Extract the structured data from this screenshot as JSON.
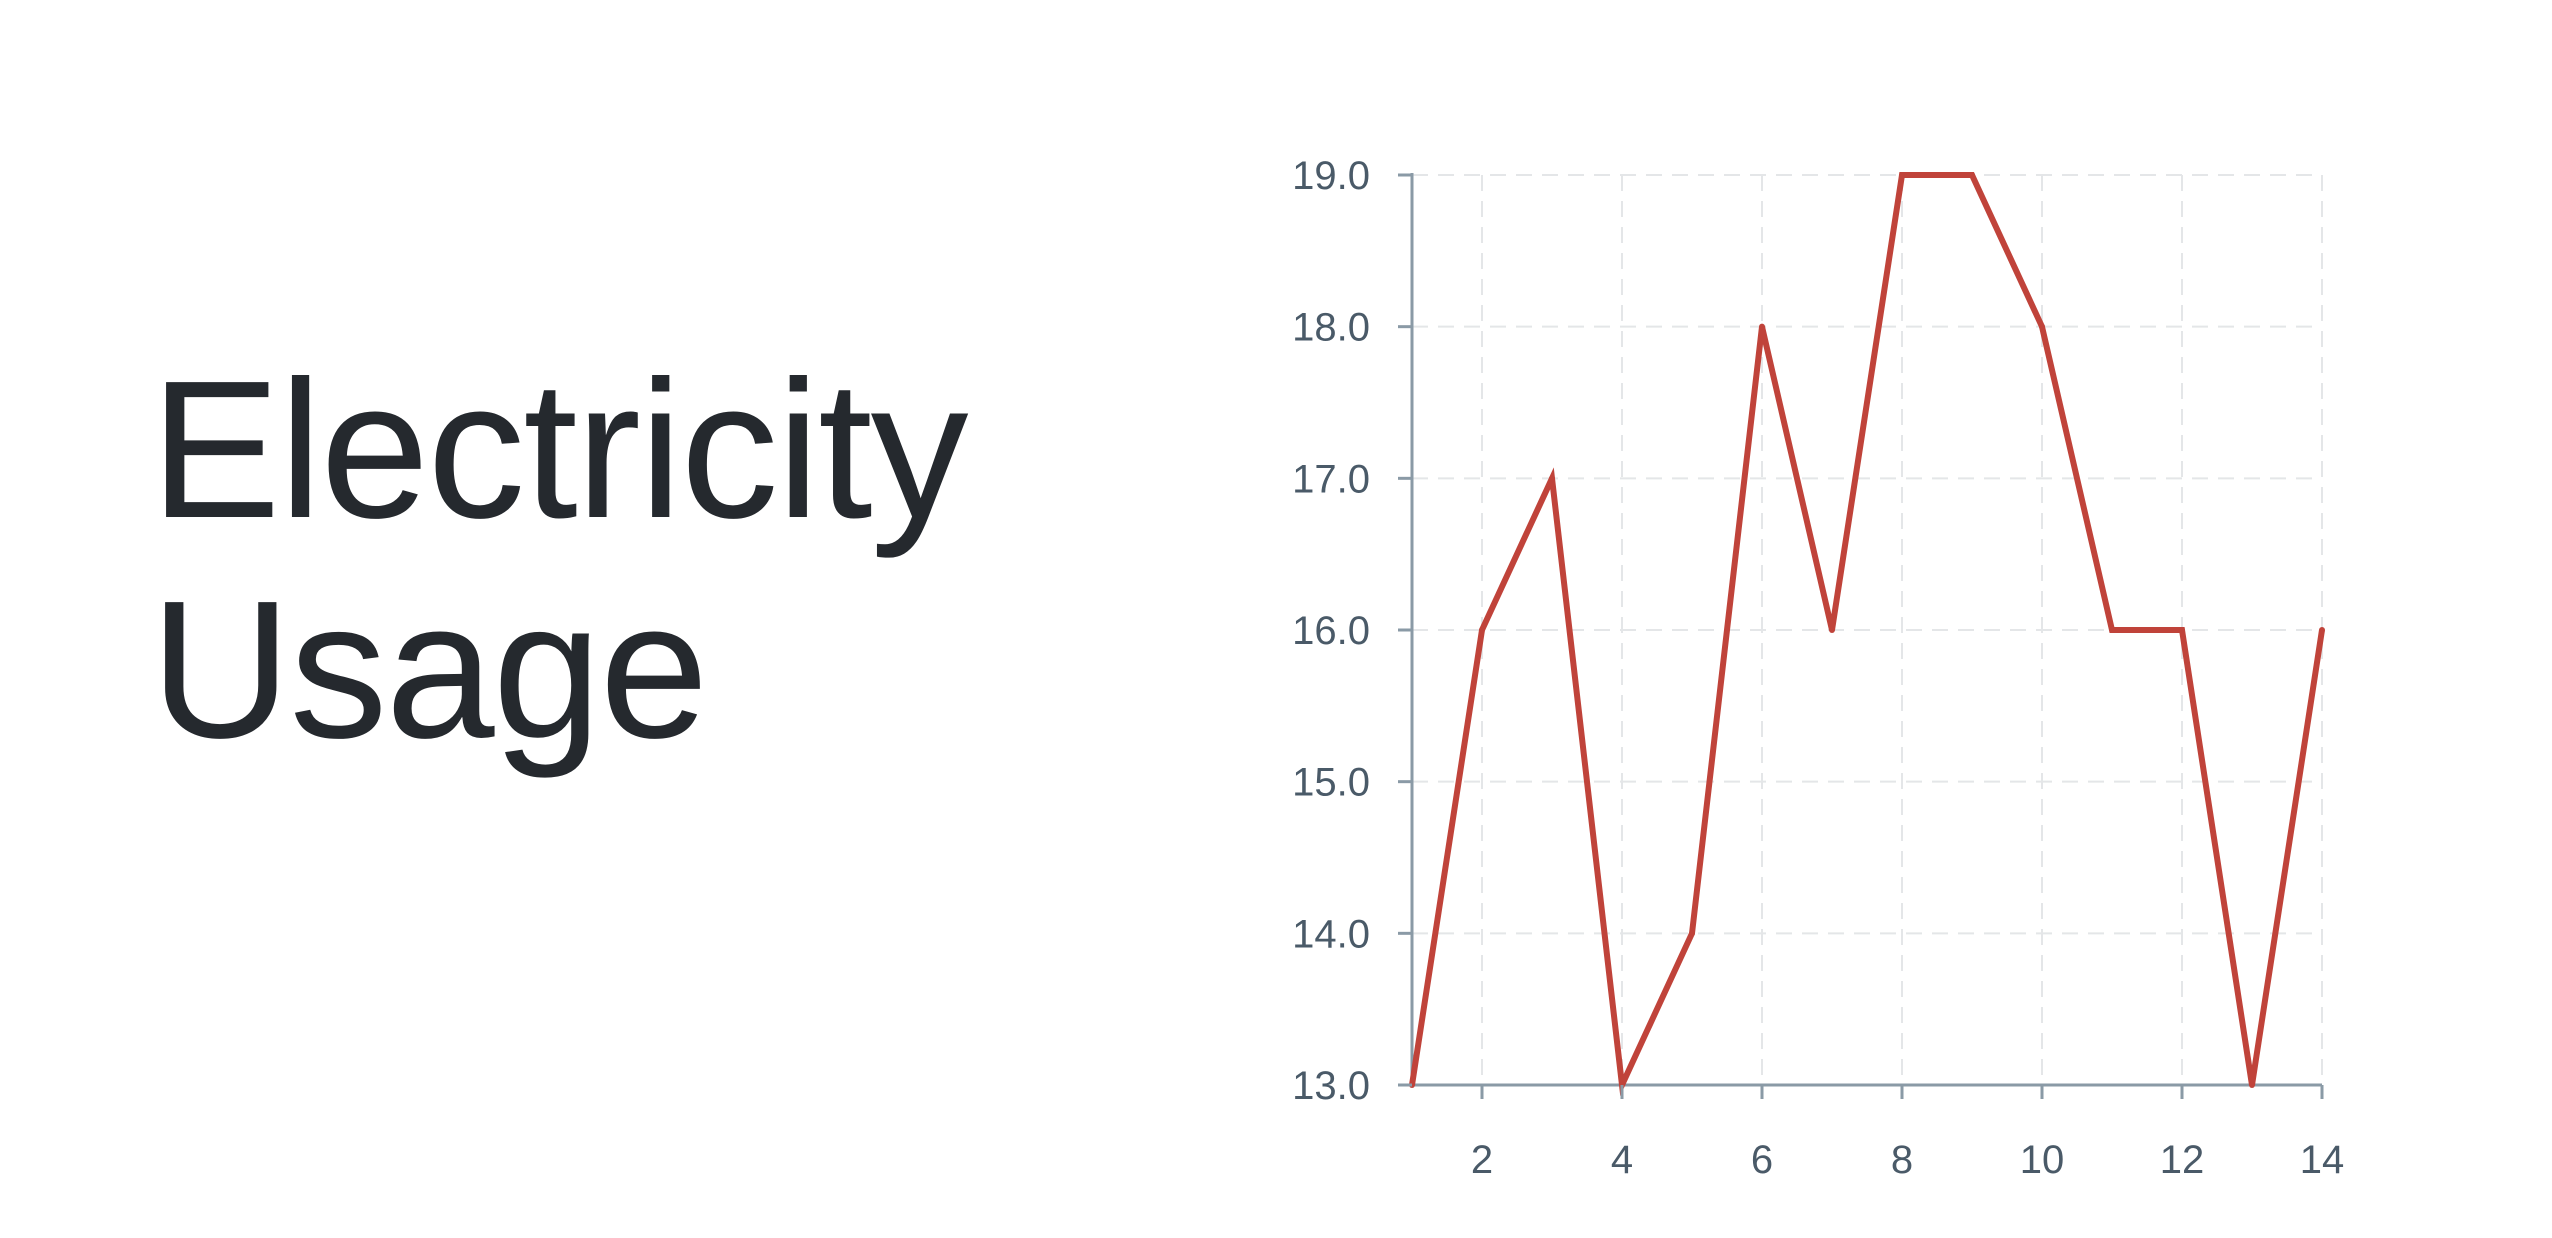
{
  "chart_data": {
    "type": "line",
    "title_lines": [
      "Electricity",
      "Usage"
    ],
    "xlabel": "",
    "ylabel": "",
    "x": [
      1,
      2,
      3,
      4,
      5,
      6,
      7,
      8,
      9,
      10,
      11,
      12,
      13,
      14
    ],
    "series": [
      {
        "values": [
          13,
          16,
          17,
          13,
          14,
          18,
          16,
          19,
          19,
          18,
          16,
          16,
          13,
          16
        ],
        "color": "#c0433a"
      }
    ],
    "xlim": [
      1,
      14
    ],
    "ylim": [
      13,
      19
    ],
    "x_ticks": [
      2,
      4,
      6,
      8,
      10,
      12,
      14
    ],
    "y_ticks": [
      13.0,
      14.0,
      15.0,
      16.0,
      17.0,
      18.0,
      19.0
    ],
    "y_tick_labels": [
      "13.0",
      "14.0",
      "15.0",
      "16.0",
      "17.0",
      "18.0",
      "19.0"
    ],
    "grid": true,
    "grid_color": "#e4e6e8",
    "axis_color": "#8a9aa6",
    "text_color": "#4a5a68",
    "title_color": "#25292e"
  }
}
